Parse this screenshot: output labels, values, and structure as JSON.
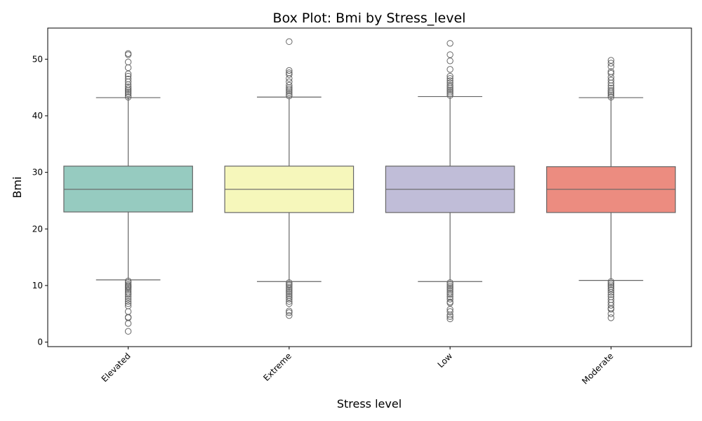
{
  "chart_data": {
    "type": "box",
    "title": "Box Plot: Bmi by Stress_level",
    "xlabel": "Stress level",
    "ylabel": "Bmi",
    "ylim": [
      -0.8,
      55.5
    ],
    "yticks": [
      0,
      10,
      20,
      30,
      40,
      50
    ],
    "grid": false,
    "legend": "none",
    "categories": [
      "Elevated",
      "Extreme",
      "Low",
      "Moderate"
    ],
    "colors": [
      "#96cbc0",
      "#f6f7bb",
      "#c0bdd8",
      "#ec8c80"
    ],
    "boxes": [
      {
        "category": "Elevated",
        "q1": 23.0,
        "median": 27.0,
        "q3": 31.1,
        "whisker_low": 11.0,
        "whisker_high": 43.2,
        "outliers_low": [
          10.8,
          10.5,
          10.2,
          10.0,
          9.8,
          9.6,
          9.3,
          9.0,
          8.7,
          8.4,
          8.0,
          7.6,
          7.2,
          6.8,
          6.4,
          5.4,
          4.4,
          4.3,
          3.3,
          1.9
        ],
        "outliers_high": [
          43.3,
          43.6,
          43.9,
          44.2,
          44.5,
          44.8,
          45.1,
          45.5,
          46.0,
          46.5,
          47.0,
          47.4,
          48.5,
          49.5,
          50.8,
          51.0
        ]
      },
      {
        "category": "Extreme",
        "q1": 22.9,
        "median": 27.0,
        "q3": 31.1,
        "whisker_low": 10.7,
        "whisker_high": 43.3,
        "outliers_low": [
          10.5,
          10.2,
          10.0,
          9.7,
          9.4,
          9.1,
          8.8,
          8.5,
          8.2,
          7.9,
          7.6,
          7.2,
          6.8,
          5.5,
          5.2,
          4.7
        ],
        "outliers_high": [
          43.5,
          43.8,
          44.1,
          44.4,
          44.7,
          45.0,
          45.4,
          46.0,
          46.6,
          47.3,
          47.6,
          48.0,
          53.1
        ]
      },
      {
        "category": "Low",
        "q1": 22.9,
        "median": 27.0,
        "q3": 31.1,
        "whisker_low": 10.7,
        "whisker_high": 43.4,
        "outliers_low": [
          10.5,
          10.2,
          9.9,
          9.6,
          9.3,
          9.0,
          8.7,
          8.4,
          8.0,
          7.6,
          7.1,
          6.9,
          5.8,
          5.4,
          4.8,
          4.5,
          4.1
        ],
        "outliers_high": [
          43.6,
          43.9,
          44.2,
          44.5,
          44.8,
          45.1,
          45.4,
          45.8,
          46.2,
          46.6,
          47.0,
          48.2,
          49.7,
          50.8,
          52.8
        ]
      },
      {
        "category": "Moderate",
        "q1": 22.9,
        "median": 27.0,
        "q3": 31.0,
        "whisker_low": 10.9,
        "whisker_high": 43.2,
        "outliers_low": [
          10.7,
          10.4,
          10.1,
          9.8,
          9.5,
          9.2,
          8.8,
          8.4,
          8.0,
          7.5,
          7.0,
          6.5,
          6.0,
          5.8,
          5.0,
          4.3
        ],
        "outliers_high": [
          43.3,
          43.6,
          43.9,
          44.2,
          44.5,
          44.9,
          45.3,
          45.8,
          46.3,
          46.8,
          47.5,
          47.8,
          48.7,
          49.3,
          49.8
        ]
      }
    ]
  }
}
